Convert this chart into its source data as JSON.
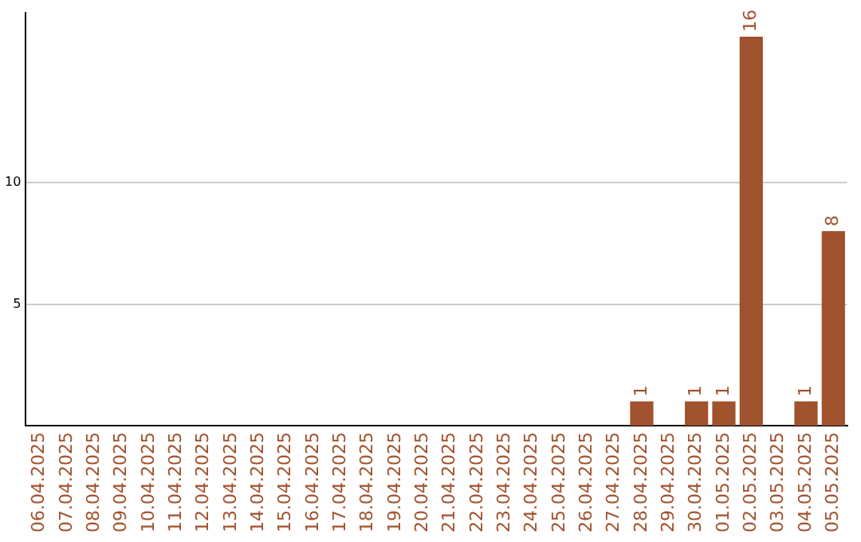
{
  "chart_data": {
    "type": "bar",
    "categories": [
      "06.04.2025",
      "07.04.2025",
      "08.04.2025",
      "09.04.2025",
      "10.04.2025",
      "11.04.2025",
      "12.04.2025",
      "13.04.2025",
      "14.04.2025",
      "15.04.2025",
      "16.04.2025",
      "17.04.2025",
      "18.04.2025",
      "19.04.2025",
      "20.04.2025",
      "21.04.2025",
      "22.04.2025",
      "23.04.2025",
      "24.04.2025",
      "25.04.2025",
      "26.04.2025",
      "27.04.2025",
      "28.04.2025",
      "29.04.2025",
      "30.04.2025",
      "01.05.2025",
      "02.05.2025",
      "03.05.2025",
      "04.05.2025",
      "05.05.2025"
    ],
    "values": [
      0,
      0,
      0,
      0,
      0,
      0,
      0,
      0,
      0,
      0,
      0,
      0,
      0,
      0,
      0,
      0,
      0,
      0,
      0,
      0,
      0,
      0,
      1,
      0,
      1,
      1,
      16,
      0,
      1,
      8
    ],
    "value_labels": [
      null,
      null,
      null,
      null,
      null,
      null,
      null,
      null,
      null,
      null,
      null,
      null,
      null,
      null,
      null,
      null,
      null,
      null,
      null,
      null,
      null,
      null,
      "1",
      null,
      "1",
      "1",
      "16",
      null,
      "1",
      "8"
    ],
    "color": "#a0522d",
    "ylim": [
      0,
      17
    ],
    "yticks": [
      5,
      10
    ],
    "grid": "y",
    "legend": false
  }
}
